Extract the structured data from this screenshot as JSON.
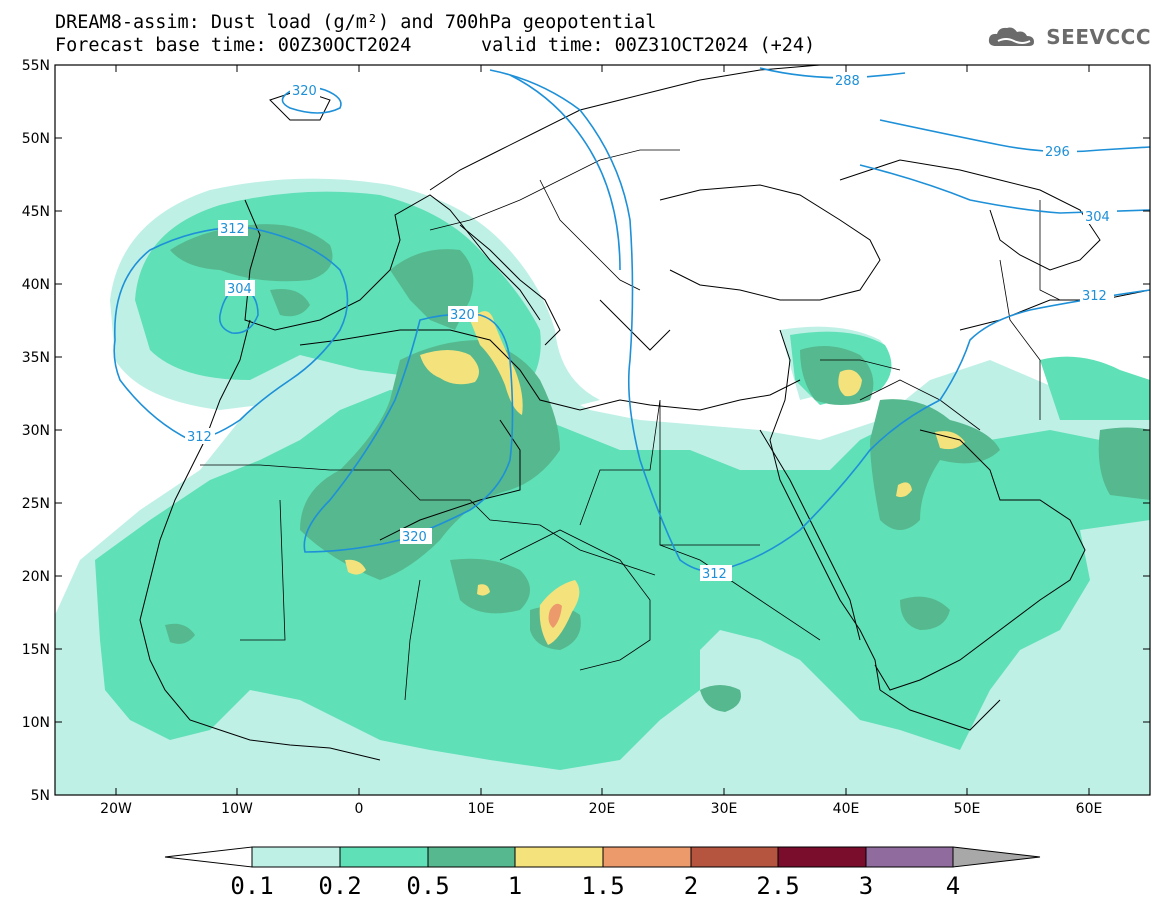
{
  "header": {
    "title_line1": "DREAM8-assim: Dust load (g/m²) and 700hPa geopotential",
    "base_time": "Forecast base time: 00Z30OCT2024",
    "valid_time": "valid time: 00Z31OCT2024 (+24)"
  },
  "logo": {
    "text": "SEEVCCC",
    "icon": "cloud-icon"
  },
  "map": {
    "projection": "lat-lon",
    "lon_range": [
      -25,
      65
    ],
    "lat_range": [
      5,
      55
    ],
    "lat_ticks": [
      "55N",
      "50N",
      "45N",
      "40N",
      "35N",
      "30N",
      "25N",
      "20N",
      "15N",
      "10N",
      "5N"
    ],
    "lon_ticks": [
      "20W",
      "10W",
      "0",
      "10E",
      "20E",
      "30E",
      "40E",
      "50E",
      "60E"
    ],
    "contour_color": "#1e90d8",
    "contour_labels": [
      "320",
      "288",
      "296",
      "304",
      "312",
      "304",
      "320",
      "312",
      "312",
      "320",
      "312"
    ]
  },
  "colorbar": {
    "labels": [
      "0.1",
      "0.2",
      "0.5",
      "1",
      "1.5",
      "2",
      "2.5",
      "3",
      "4"
    ],
    "colors": [
      "#bff0e6",
      "#5fe0b6",
      "#56b88e",
      "#f4e27c",
      "#ec9a6c",
      "#b5543f",
      "#7a0c2c",
      "#8f6b9e",
      "#a8a8a8"
    ],
    "units": "g/m²"
  }
}
